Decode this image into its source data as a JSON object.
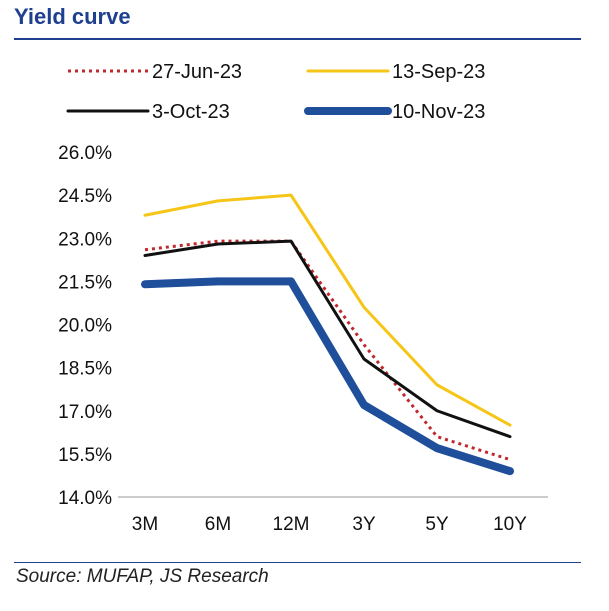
{
  "header": {
    "title": "Yield curve"
  },
  "footer": {
    "source": "Source:  MUFAP, JS Research"
  },
  "chart_data": {
    "type": "line",
    "title": "Yield curve",
    "xlabel": "",
    "ylabel": "",
    "categories": [
      "3M",
      "6M",
      "12M",
      "3Y",
      "5Y",
      "10Y"
    ],
    "ylim": [
      14.0,
      26.0
    ],
    "yticks": [
      "26.0%",
      "24.5%",
      "23.0%",
      "21.5%",
      "20.0%",
      "18.5%",
      "17.0%",
      "15.5%",
      "14.0%"
    ],
    "ytick_values": [
      26.0,
      24.5,
      23.0,
      21.5,
      20.0,
      18.5,
      17.0,
      15.5,
      14.0
    ],
    "grid": false,
    "legend_position": "top",
    "series": [
      {
        "name": "27-Jun-23",
        "values": [
          22.6,
          22.9,
          22.9,
          19.3,
          16.1,
          15.3
        ],
        "color": "#c0282d",
        "style": "dotted"
      },
      {
        "name": "13-Sep-23",
        "values": [
          23.8,
          24.3,
          24.5,
          20.6,
          17.9,
          16.5
        ],
        "color": "#f5c518",
        "style": "solid"
      },
      {
        "name": "3-Oct-23",
        "values": [
          22.4,
          22.8,
          22.9,
          18.8,
          17.0,
          16.1
        ],
        "color": "#111111",
        "style": "solid"
      },
      {
        "name": "10-Nov-23",
        "values": [
          21.4,
          21.5,
          21.5,
          17.2,
          15.7,
          14.9
        ],
        "color": "#1f4e9a",
        "style": "thick"
      }
    ]
  }
}
